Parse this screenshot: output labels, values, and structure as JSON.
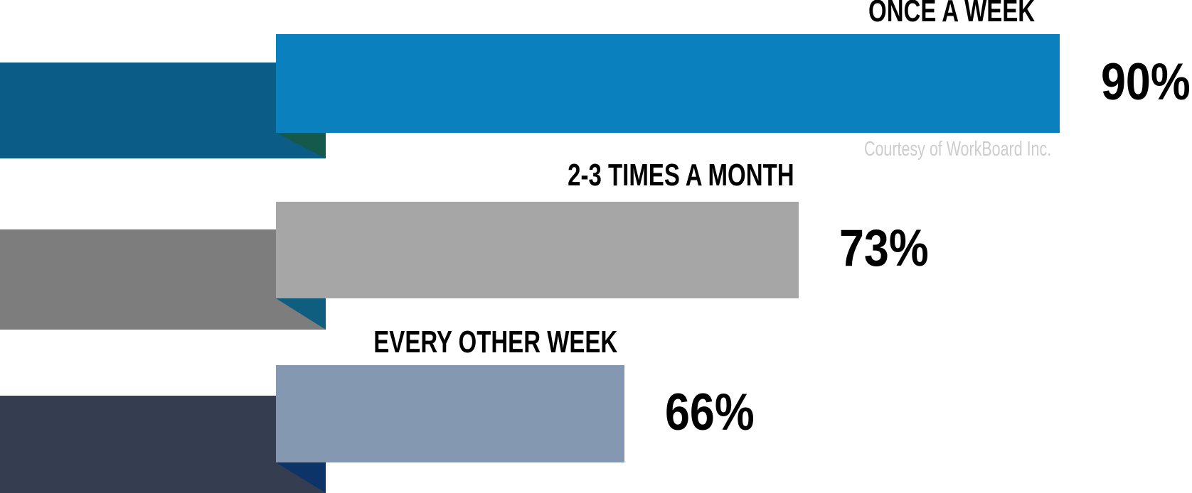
{
  "chart_data": {
    "type": "bar",
    "orientation": "horizontal",
    "title": "",
    "categories": [
      "ONCE A WEEK",
      "2-3 TIMES A MONTH",
      "EVERY OTHER WEEK"
    ],
    "values": [
      90,
      73,
      66
    ],
    "unit": "%",
    "value_labels": [
      "90%",
      "73%",
      "66%"
    ],
    "xlabel": "",
    "ylabel": "",
    "axes_shown": false,
    "grid": false,
    "legend": "none",
    "annotation": "Courtesy of WorkBoard Inc.",
    "style": "folded-ribbon infographic bars, labels above bar right ends, values right of bars"
  },
  "rows": [
    {
      "label": "ONCE A WEEK",
      "value": 90,
      "value_label": "90%",
      "bar_color": "#0B80BE",
      "ribbon_color": "#0B5C86",
      "fold_color": "#15594C"
    },
    {
      "label": "2-3 TIMES A MONTH",
      "value": 73,
      "value_label": "73%",
      "bar_color": "#A6A6A6",
      "ribbon_color": "#7D7D7D",
      "fold_color": "#0F5E80"
    },
    {
      "label": "EVERY OTHER WEEK",
      "value": 66,
      "value_label": "66%",
      "bar_color": "#8598B2",
      "ribbon_color": "#343E50",
      "fold_color": "#0D3369"
    }
  ],
  "credit": "Courtesy of WorkBoard Inc.",
  "colors": {
    "background": "#FFFFFF",
    "label_text": "#000000",
    "credit_text": "#CDCDCD"
  }
}
